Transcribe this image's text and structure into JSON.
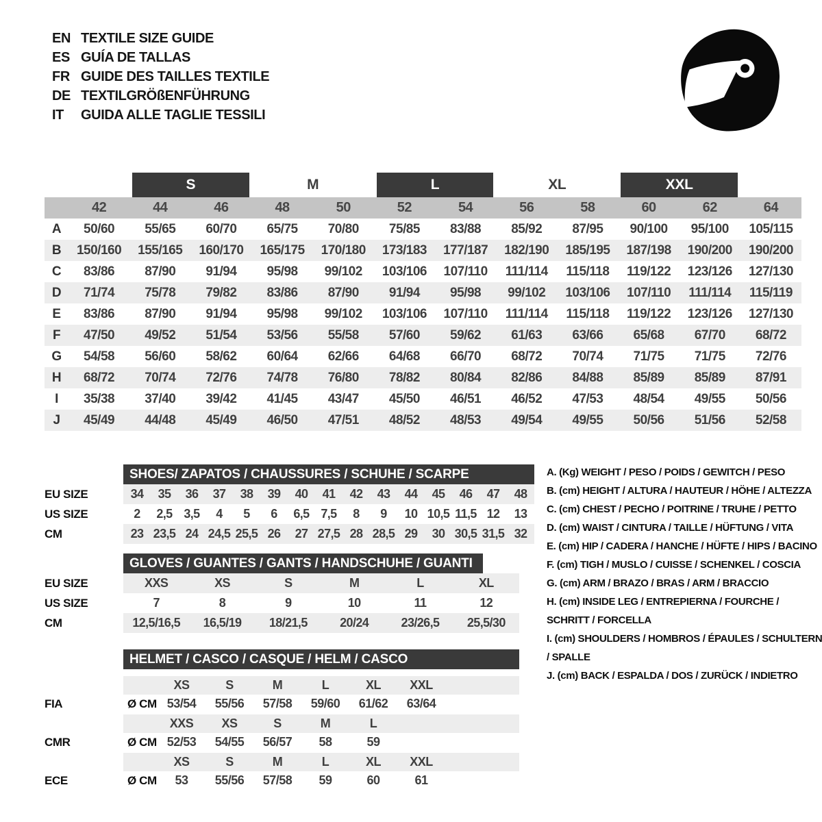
{
  "title_block": {
    "languages": [
      {
        "code": "EN",
        "title": "TEXTILE SIZE GUIDE"
      },
      {
        "code": "ES",
        "title": "GUÍA DE TALLAS"
      },
      {
        "code": "FR",
        "title": "GUIDE DES TAILLES TEXTILE"
      },
      {
        "code": "DE",
        "title": "TEXTILGRÖßENFÜHRUNG"
      },
      {
        "code": "IT",
        "title": "GUIDA ALLE TAGLIE TESSILI"
      }
    ]
  },
  "helmet_icon": {
    "name": "racing-helmet",
    "color": "#0a0a0a"
  },
  "colors": {
    "dark_bar": "#3a3a3a",
    "column_band_gray": "#c4c4c4",
    "row_stripe_gray": "#ededed",
    "value_text": "#3f3f3f"
  },
  "main_table": {
    "size_groups": [
      {
        "label": "S",
        "boxed": true,
        "span_columns": [
          "44",
          "46"
        ]
      },
      {
        "label": "M",
        "boxed": false,
        "span_columns": [
          "48",
          "50"
        ]
      },
      {
        "label": "L",
        "boxed": true,
        "span_columns": [
          "52",
          "54"
        ]
      },
      {
        "label": "XL",
        "boxed": false,
        "span_columns": [
          "56",
          "58"
        ]
      },
      {
        "label": "XXL",
        "boxed": true,
        "span_columns": [
          "60",
          "62"
        ]
      }
    ],
    "columns": [
      "42",
      "44",
      "46",
      "48",
      "50",
      "52",
      "54",
      "56",
      "58",
      "60",
      "62",
      "64"
    ],
    "rows": [
      {
        "letter": "A",
        "values": [
          "50/60",
          "55/65",
          "60/70",
          "65/75",
          "70/80",
          "75/85",
          "83/88",
          "85/92",
          "87/95",
          "90/100",
          "95/100",
          "105/115"
        ]
      },
      {
        "letter": "B",
        "values": [
          "150/160",
          "155/165",
          "160/170",
          "165/175",
          "170/180",
          "173/183",
          "177/187",
          "182/190",
          "185/195",
          "187/198",
          "190/200",
          "190/200"
        ]
      },
      {
        "letter": "C",
        "values": [
          "83/86",
          "87/90",
          "91/94",
          "95/98",
          "99/102",
          "103/106",
          "107/110",
          "111/114",
          "115/118",
          "119/122",
          "123/126",
          "127/130"
        ]
      },
      {
        "letter": "D",
        "values": [
          "71/74",
          "75/78",
          "79/82",
          "83/86",
          "87/90",
          "91/94",
          "95/98",
          "99/102",
          "103/106",
          "107/110",
          "111/114",
          "115/119"
        ]
      },
      {
        "letter": "E",
        "values": [
          "83/86",
          "87/90",
          "91/94",
          "95/98",
          "99/102",
          "103/106",
          "107/110",
          "111/114",
          "115/118",
          "119/122",
          "123/126",
          "127/130"
        ]
      },
      {
        "letter": "F",
        "values": [
          "47/50",
          "49/52",
          "51/54",
          "53/56",
          "55/58",
          "57/60",
          "59/62",
          "61/63",
          "63/66",
          "65/68",
          "67/70",
          "68/72"
        ]
      },
      {
        "letter": "G",
        "values": [
          "54/58",
          "56/60",
          "58/62",
          "60/64",
          "62/66",
          "64/68",
          "66/70",
          "68/72",
          "70/74",
          "71/75",
          "71/75",
          "72/76"
        ]
      },
      {
        "letter": "H",
        "values": [
          "68/72",
          "70/74",
          "72/76",
          "74/78",
          "76/80",
          "78/82",
          "80/84",
          "82/86",
          "84/88",
          "85/89",
          "85/89",
          "87/91"
        ]
      },
      {
        "letter": "I",
        "values": [
          "35/38",
          "37/40",
          "39/42",
          "41/45",
          "43/47",
          "45/50",
          "46/51",
          "46/52",
          "47/53",
          "48/54",
          "49/55",
          "50/56"
        ]
      },
      {
        "letter": "J",
        "values": [
          "45/49",
          "44/48",
          "45/49",
          "46/50",
          "47/51",
          "48/52",
          "48/53",
          "49/54",
          "49/55",
          "50/56",
          "51/56",
          "52/58"
        ]
      }
    ]
  },
  "shoes_table": {
    "header": "SHOES/ ZAPATOS / CHAUSSURES / SCHUHE / SCARPE",
    "rows": [
      {
        "label": "EU SIZE",
        "shaded": true,
        "values": [
          "34",
          "35",
          "36",
          "37",
          "38",
          "39",
          "40",
          "41",
          "42",
          "43",
          "44",
          "45",
          "46",
          "47",
          "48"
        ]
      },
      {
        "label": "US SIZE",
        "shaded": false,
        "values": [
          "2",
          "2,5",
          "3,5",
          "4",
          "5",
          "6",
          "6,5",
          "7,5",
          "8",
          "9",
          "10",
          "10,5",
          "11,5",
          "12",
          "13"
        ]
      },
      {
        "label": "CM",
        "shaded": true,
        "values": [
          "23",
          "23,5",
          "24",
          "24,5",
          "25,5",
          "26",
          "27",
          "27,5",
          "28",
          "28,5",
          "29",
          "30",
          "30,5",
          "31,5",
          "32"
        ]
      }
    ]
  },
  "gloves_table": {
    "header": "GLOVES / GUANTES / GANTS / HANDSCHUHE / GUANTI",
    "rows": [
      {
        "label": "EU SIZE",
        "shaded": true,
        "values": [
          "XXS",
          "XS",
          "S",
          "M",
          "L",
          "XL"
        ]
      },
      {
        "label": "US SIZE",
        "shaded": false,
        "values": [
          "7",
          "8",
          "9",
          "10",
          "11",
          "12"
        ]
      },
      {
        "label": "CM",
        "shaded": true,
        "values": [
          "12,5/16,5",
          "16,5/19",
          "18/21,5",
          "20/24",
          "23/26,5",
          "25,5/30"
        ]
      }
    ]
  },
  "helmet_table": {
    "header": "HELMET / CASCO / CASQUE / HELM / CASCO",
    "standards": [
      {
        "label": "FIA",
        "unit": "Ø CM",
        "sizes": [
          "XS",
          "S",
          "M",
          "L",
          "XL",
          "XXL"
        ],
        "values": [
          "53/54",
          "55/56",
          "57/58",
          "59/60",
          "61/62",
          "63/64"
        ]
      },
      {
        "label": "CMR",
        "unit": "Ø CM",
        "sizes": [
          "XXS",
          "XS",
          "S",
          "M",
          "L",
          ""
        ],
        "values": [
          "52/53",
          "54/55",
          "56/57",
          "58",
          "59",
          ""
        ]
      },
      {
        "label": "ECE",
        "unit": "Ø CM",
        "sizes": [
          "XS",
          "S",
          "M",
          "L",
          "XL",
          "XXL"
        ],
        "values": [
          "53",
          "55/56",
          "57/58",
          "59",
          "60",
          "61"
        ]
      }
    ]
  },
  "legend": {
    "items": [
      "A. (Kg) WEIGHT / PESO / POIDS / GEWITCH / PESO",
      "B. (cm) HEIGHT / ALTURA / HAUTEUR / HÖHE / ALTEZZA",
      "C. (cm) CHEST / PECHO / POITRINE / TRUHE / PETTO",
      "D. (cm) WAIST / CINTURA / TAILLE / HÜFTUNG / VITA",
      "E. (cm) HIP / CADERA / HANCHE / HÜFTE / HIPS / BACINO",
      "F. (cm) TIGH / MUSLO / CUISSE / SCHENKEL / COSCIA",
      "G. (cm) ARM / BRAZO / BRAS / ARM / BRACCIO",
      "H. (cm) INSIDE LEG / ENTREPIERNA / FOURCHE / SCHRITT / FORCELLA",
      "I. (cm) SHOULDERS / HOMBROS / ÉPAULES / SCHULTERN / SPALLE",
      "J. (cm) BACK / ESPALDA / DOS / ZURÜCK / INDIETRO"
    ]
  }
}
